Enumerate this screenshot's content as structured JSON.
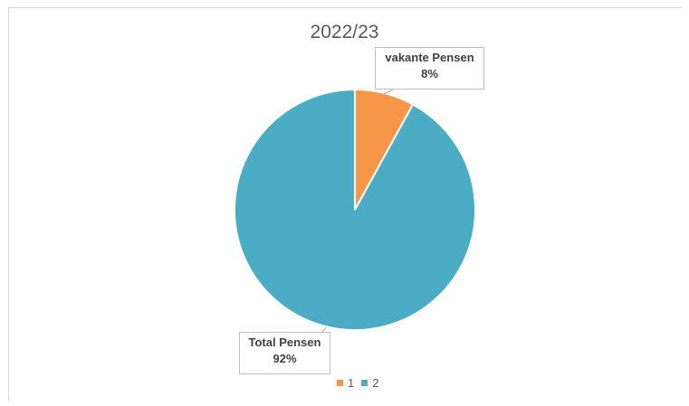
{
  "chart_data": {
    "type": "pie",
    "title": "2022/23",
    "series": [
      {
        "name": "1",
        "label": "vakante Pensen",
        "percent_label": "8%",
        "value": 8,
        "color": "#f79646"
      },
      {
        "name": "2",
        "label": "Total Pensen",
        "percent_label": "92%",
        "value": 92,
        "color": "#4bacc6"
      }
    ],
    "legend": {
      "placement": "bottom",
      "entries": [
        "1",
        "2"
      ]
    }
  }
}
